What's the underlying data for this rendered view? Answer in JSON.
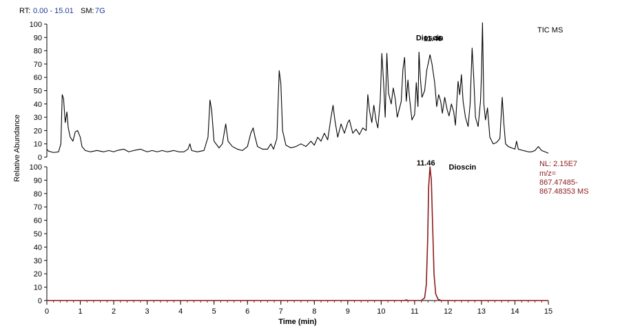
{
  "header": {
    "rt_label": "RT:",
    "rt_value": "0.00 - 15.01",
    "sm_label": "SM:",
    "sm_value": "7G"
  },
  "colors": {
    "tic_trace": "#000000",
    "xic_trace": "#8b1a1a",
    "header_value": "#1f3a93",
    "nl_text": "#8b1a1a",
    "axis": "#000000",
    "minor_tick": "#8b1a1a"
  },
  "chart_data": [
    {
      "type": "line",
      "id": "tic",
      "trace_label": "TIC  MS",
      "xlim": [
        0,
        15
      ],
      "ylim": [
        0,
        100
      ],
      "x_ticks": [
        "0",
        "1",
        "2",
        "3",
        "4",
        "5",
        "6",
        "7",
        "8",
        "9",
        "10",
        "11",
        "12",
        "13",
        "14",
        "15"
      ],
      "y_ticks": [
        "0",
        "10",
        "20",
        "30",
        "40",
        "50",
        "60",
        "70",
        "80",
        "90",
        "100"
      ],
      "annotations": [
        {
          "text": "Dioscin",
          "x": 11.0,
          "y": 90
        },
        {
          "text": "11.46",
          "x": 11.46,
          "y": 81
        }
      ],
      "series": [
        {
          "points": [
            [
              0,
              6
            ],
            [
              0.05,
              4.5
            ],
            [
              0.2,
              3.5
            ],
            [
              0.35,
              4
            ],
            [
              0.42,
              10
            ],
            [
              0.46,
              47
            ],
            [
              0.5,
              44
            ],
            [
              0.55,
              26
            ],
            [
              0.6,
              34
            ],
            [
              0.64,
              22
            ],
            [
              0.7,
              15
            ],
            [
              0.78,
              12
            ],
            [
              0.85,
              19
            ],
            [
              0.92,
              20
            ],
            [
              1.0,
              15
            ],
            [
              1.05,
              8
            ],
            [
              1.15,
              5
            ],
            [
              1.3,
              4
            ],
            [
              1.5,
              5
            ],
            [
              1.7,
              4
            ],
            [
              1.85,
              5
            ],
            [
              2.0,
              4
            ],
            [
              2.1,
              5
            ],
            [
              2.3,
              6
            ],
            [
              2.45,
              4
            ],
            [
              2.6,
              5
            ],
            [
              2.8,
              6
            ],
            [
              3.0,
              4
            ],
            [
              3.15,
              5
            ],
            [
              3.3,
              4
            ],
            [
              3.45,
              5
            ],
            [
              3.6,
              4
            ],
            [
              3.8,
              5
            ],
            [
              3.95,
              4
            ],
            [
              4.1,
              4
            ],
            [
              4.22,
              6
            ],
            [
              4.28,
              10
            ],
            [
              4.33,
              5
            ],
            [
              4.5,
              4
            ],
            [
              4.7,
              5
            ],
            [
              4.82,
              15
            ],
            [
              4.88,
              43
            ],
            [
              4.93,
              35
            ],
            [
              5.0,
              12
            ],
            [
              5.15,
              7
            ],
            [
              5.25,
              10
            ],
            [
              5.35,
              25
            ],
            [
              5.42,
              12
            ],
            [
              5.55,
              8
            ],
            [
              5.7,
              6
            ],
            [
              5.85,
              5
            ],
            [
              6.0,
              8
            ],
            [
              6.1,
              18
            ],
            [
              6.17,
              22
            ],
            [
              6.22,
              16
            ],
            [
              6.3,
              8
            ],
            [
              6.45,
              6
            ],
            [
              6.6,
              6
            ],
            [
              6.7,
              10
            ],
            [
              6.78,
              6
            ],
            [
              6.88,
              14
            ],
            [
              6.95,
              65
            ],
            [
              7.0,
              55
            ],
            [
              7.05,
              20
            ],
            [
              7.15,
              9
            ],
            [
              7.3,
              7
            ],
            [
              7.45,
              8
            ],
            [
              7.6,
              10
            ],
            [
              7.75,
              8
            ],
            [
              7.9,
              12
            ],
            [
              8.0,
              9
            ],
            [
              8.1,
              15
            ],
            [
              8.2,
              12
            ],
            [
              8.3,
              18
            ],
            [
              8.4,
              13
            ],
            [
              8.5,
              30
            ],
            [
              8.56,
              39
            ],
            [
              8.62,
              27
            ],
            [
              8.7,
              15
            ],
            [
              8.8,
              25
            ],
            [
              8.9,
              18
            ],
            [
              9.0,
              26
            ],
            [
              9.05,
              28
            ],
            [
              9.15,
              18
            ],
            [
              9.25,
              21
            ],
            [
              9.35,
              17
            ],
            [
              9.45,
              22
            ],
            [
              9.55,
              20
            ],
            [
              9.6,
              47
            ],
            [
              9.65,
              35
            ],
            [
              9.72,
              26
            ],
            [
              9.78,
              39
            ],
            [
              9.85,
              27
            ],
            [
              9.9,
              22
            ],
            [
              9.97,
              42
            ],
            [
              10.02,
              78
            ],
            [
              10.07,
              57
            ],
            [
              10.12,
              30
            ],
            [
              10.17,
              78
            ],
            [
              10.22,
              48
            ],
            [
              10.3,
              40
            ],
            [
              10.36,
              52
            ],
            [
              10.42,
              44
            ],
            [
              10.48,
              30
            ],
            [
              10.53,
              35
            ],
            [
              10.6,
              42
            ],
            [
              10.65,
              66
            ],
            [
              10.7,
              75
            ],
            [
              10.75,
              42
            ],
            [
              10.8,
              58
            ],
            [
              10.85,
              44
            ],
            [
              10.92,
              28
            ],
            [
              11.0,
              32
            ],
            [
              11.05,
              56
            ],
            [
              11.1,
              38
            ],
            [
              11.13,
              79
            ],
            [
              11.17,
              60
            ],
            [
              11.22,
              45
            ],
            [
              11.3,
              50
            ],
            [
              11.36,
              65
            ],
            [
              11.42,
              72
            ],
            [
              11.46,
              77
            ],
            [
              11.52,
              70
            ],
            [
              11.6,
              56
            ],
            [
              11.66,
              38
            ],
            [
              11.72,
              47
            ],
            [
              11.78,
              42
            ],
            [
              11.83,
              33
            ],
            [
              11.9,
              45
            ],
            [
              11.97,
              36
            ],
            [
              12.03,
              31
            ],
            [
              12.1,
              40
            ],
            [
              12.17,
              34
            ],
            [
              12.22,
              24
            ],
            [
              12.3,
              57
            ],
            [
              12.35,
              47
            ],
            [
              12.4,
              62
            ],
            [
              12.45,
              42
            ],
            [
              12.52,
              30
            ],
            [
              12.6,
              23
            ],
            [
              12.66,
              40
            ],
            [
              12.72,
              82
            ],
            [
              12.77,
              59
            ],
            [
              12.82,
              30
            ],
            [
              12.9,
              23
            ],
            [
              12.97,
              42
            ],
            [
              13.0,
              62
            ],
            [
              13.03,
              101
            ],
            [
              13.07,
              40
            ],
            [
              13.12,
              28
            ],
            [
              13.18,
              37
            ],
            [
              13.25,
              15
            ],
            [
              13.35,
              10
            ],
            [
              13.45,
              11
            ],
            [
              13.55,
              14
            ],
            [
              13.62,
              45
            ],
            [
              13.67,
              25
            ],
            [
              13.72,
              10
            ],
            [
              13.8,
              8
            ],
            [
              13.9,
              7
            ],
            [
              14.0,
              6
            ],
            [
              14.05,
              12
            ],
            [
              14.1,
              6
            ],
            [
              14.25,
              5
            ],
            [
              14.4,
              4
            ],
            [
              14.5,
              4
            ],
            [
              14.6,
              5
            ],
            [
              14.7,
              8
            ],
            [
              14.8,
              5
            ],
            [
              14.9,
              4
            ],
            [
              15.0,
              3
            ]
          ]
        }
      ]
    },
    {
      "type": "line",
      "id": "xic",
      "xlim": [
        0,
        15
      ],
      "ylim": [
        0,
        100
      ],
      "x_ticks": [
        "0",
        "1",
        "2",
        "3",
        "4",
        "5",
        "6",
        "7",
        "8",
        "9",
        "10",
        "11",
        "12",
        "13",
        "14",
        "15"
      ],
      "y_ticks": [
        "0",
        "10",
        "20",
        "30",
        "40",
        "50",
        "60",
        "70",
        "80",
        "90",
        "100"
      ],
      "xlabel": "Time (min)",
      "nl_lines": [
        "NL: 2.15E7",
        "m/z=",
        "867.47485-",
        "867.48353  MS"
      ],
      "annotations": [
        {
          "text": "11.46",
          "x": 11.46,
          "y": 100
        },
        {
          "text": "Dioscin",
          "x": 11.9,
          "y": 100
        }
      ],
      "series": [
        {
          "points": [
            [
              0,
              0
            ],
            [
              10.7,
              0
            ],
            [
              10.75,
              0.5
            ],
            [
              10.8,
              0
            ],
            [
              11.2,
              0
            ],
            [
              11.3,
              2
            ],
            [
              11.35,
              12
            ],
            [
              11.39,
              45
            ],
            [
              11.42,
              85
            ],
            [
              11.46,
              100
            ],
            [
              11.5,
              90
            ],
            [
              11.54,
              55
            ],
            [
              11.58,
              20
            ],
            [
              11.63,
              5
            ],
            [
              11.7,
              1
            ],
            [
              11.8,
              0
            ],
            [
              15,
              0
            ]
          ]
        }
      ]
    }
  ],
  "y_axis_label": "Relative Abundance"
}
